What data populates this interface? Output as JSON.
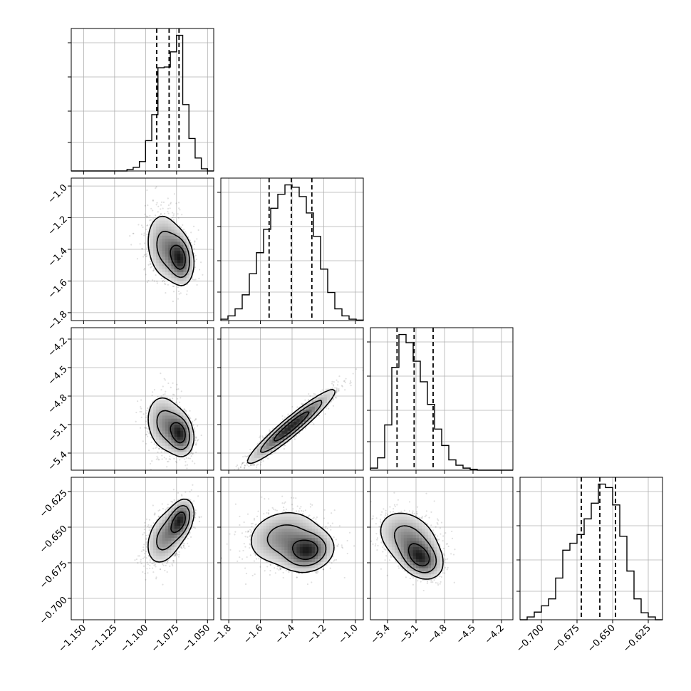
{
  "chart_data": {
    "type": "scatter",
    "subtype": "corner-plot",
    "grid": true,
    "quantiles": [
      0.16,
      0.5,
      0.84
    ],
    "contour_levels": [
      0.39,
      0.86,
      0.99
    ],
    "parameters": [
      {
        "range": [
          -1.16,
          -1.045
        ],
        "ticks": [
          -1.15,
          -1.125,
          -1.1,
          -1.075,
          -1.05
        ],
        "tick_labels": [
          "−1.150",
          "−1.125",
          "−1.100",
          "−1.075",
          "−1.050"
        ],
        "quantile_values": [
          -1.091,
          -1.081,
          -1.073
        ],
        "histogram": {
          "edges": [
            -1.16,
            -1.155,
            -1.15,
            -1.145,
            -1.14,
            -1.135,
            -1.13,
            -1.125,
            -1.12,
            -1.115,
            -1.11,
            -1.105,
            -1.1,
            -1.095,
            -1.09,
            -1.085,
            -1.08,
            -1.075,
            -1.07,
            -1.065,
            -1.06,
            -1.055,
            -1.05,
            -1.045
          ],
          "counts": [
            0,
            0,
            0,
            0,
            0,
            0,
            0,
            0,
            0,
            2,
            5,
            13,
            42,
            78,
            143,
            144,
            165,
            188,
            92,
            45,
            18,
            3,
            0
          ]
        }
      },
      {
        "range": [
          -1.85,
          -0.95
        ],
        "ticks": [
          -1.8,
          -1.6,
          -1.4,
          -1.2,
          -1.0
        ],
        "tick_labels": [
          "−1.8",
          "−1.6",
          "−1.4",
          "−1.2",
          "−1.0"
        ],
        "quantile_values": [
          -1.545,
          -1.405,
          -1.275
        ],
        "histogram": {
          "edges": [
            -1.85,
            -1.805,
            -1.76,
            -1.715,
            -1.67,
            -1.625,
            -1.58,
            -1.535,
            -1.49,
            -1.445,
            -1.4,
            -1.355,
            -1.31,
            -1.265,
            -1.22,
            -1.175,
            -1.13,
            -1.085,
            -1.04,
            -0.995,
            -0.95
          ],
          "counts": [
            3,
            10,
            25,
            55,
            100,
            145,
            195,
            240,
            270,
            290,
            285,
            265,
            230,
            180,
            110,
            60,
            25,
            10,
            3,
            1
          ]
        }
      },
      {
        "range": [
          -5.58,
          -4.08
        ],
        "ticks": [
          -5.4,
          -5.1,
          -4.8,
          -4.5,
          -4.2
        ],
        "tick_labels": [
          "−5.4",
          "−5.1",
          "−4.8",
          "−4.5",
          "−4.2"
        ],
        "quantile_values": [
          -5.3,
          -5.12,
          -4.92
        ],
        "histogram": {
          "edges": [
            -5.58,
            -5.505,
            -5.43,
            -5.355,
            -5.28,
            -5.205,
            -5.13,
            -5.055,
            -4.98,
            -4.905,
            -4.83,
            -4.755,
            -4.68,
            -4.605,
            -4.53,
            -4.455,
            -4.38,
            -4.305,
            -4.23,
            -4.155,
            -4.08
          ],
          "counts": [
            5,
            30,
            110,
            250,
            330,
            310,
            265,
            215,
            160,
            100,
            60,
            25,
            12,
            5,
            2,
            0,
            0,
            0,
            0,
            0
          ]
        }
      },
      {
        "range": [
          -0.715,
          -0.615
        ],
        "ticks": [
          -0.7,
          -0.675,
          -0.65,
          -0.625
        ],
        "tick_labels": [
          "−0.700",
          "−0.675",
          "−0.650",
          "−0.625"
        ],
        "quantile_values": [
          -0.672,
          -0.659,
          -0.648
        ],
        "histogram": {
          "edges": [
            -0.715,
            -0.71,
            -0.705,
            -0.7,
            -0.695,
            -0.69,
            -0.685,
            -0.68,
            -0.675,
            -0.67,
            -0.665,
            -0.66,
            -0.655,
            -0.65,
            -0.645,
            -0.64,
            -0.635,
            -0.63,
            -0.625,
            -0.62,
            -0.615
          ],
          "counts": [
            0,
            8,
            22,
            40,
            60,
            120,
            200,
            220,
            245,
            290,
            335,
            390,
            380,
            330,
            240,
            140,
            60,
            20,
            8,
            0
          ]
        }
      }
    ],
    "pairs": [
      {
        "x_param": 0,
        "y_param": 1,
        "correlation": -0.35,
        "secondary_mode": [
          -1.072,
          -1.46
        ]
      },
      {
        "x_param": 0,
        "y_param": 2,
        "correlation": -0.35,
        "secondary_mode": [
          -1.072,
          -5.2
        ]
      },
      {
        "x_param": 0,
        "y_param": 3,
        "correlation": 0.7,
        "secondary_mode": [
          -1.072,
          -0.645
        ]
      },
      {
        "x_param": 1,
        "y_param": 2,
        "correlation": 0.95,
        "secondary_mode": null
      },
      {
        "x_param": 1,
        "y_param": 3,
        "correlation": 0.3,
        "secondary_mode": [
          -1.3,
          -0.667
        ]
      },
      {
        "x_param": 2,
        "y_param": 3,
        "correlation": -0.55,
        "secondary_mode": [
          -5.05,
          -0.672
        ]
      }
    ]
  }
}
